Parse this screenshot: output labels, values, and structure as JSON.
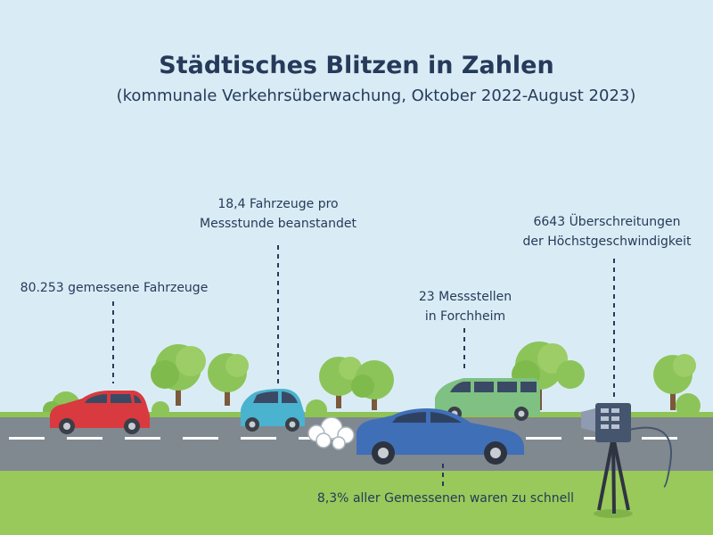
{
  "title": "Städtisches Blitzen in Zahlen",
  "subtitle": "(kommunale Verkehrsüberwachung, Oktober 2022-August 2023)",
  "annotations": {
    "measured_vehicles": "80.253 gemessene Fahrzeuge",
    "per_hour_line1": "18,4 Fahrzeuge pro",
    "per_hour_line2": "Messstunde beanstandet",
    "locations_line1": "23 Messstellen",
    "locations_line2": "in Forchheim",
    "violations_line1": "6643 Überschreitungen",
    "violations_line2": "der Höchstgeschwindigkeit",
    "too_fast": "8,3% aller Gemessenen waren zu schnell"
  },
  "colors": {
    "sky": "#d9ecf5",
    "text": "#263a5a",
    "road": "#808890",
    "grass": "#99c95a",
    "tree": "#8cc45a",
    "car_red": "#d83a3f",
    "car_teal": "#4ab3cf",
    "van_green": "#7ec183",
    "car_blue": "#3f6fb7",
    "camera": "#46556e"
  }
}
